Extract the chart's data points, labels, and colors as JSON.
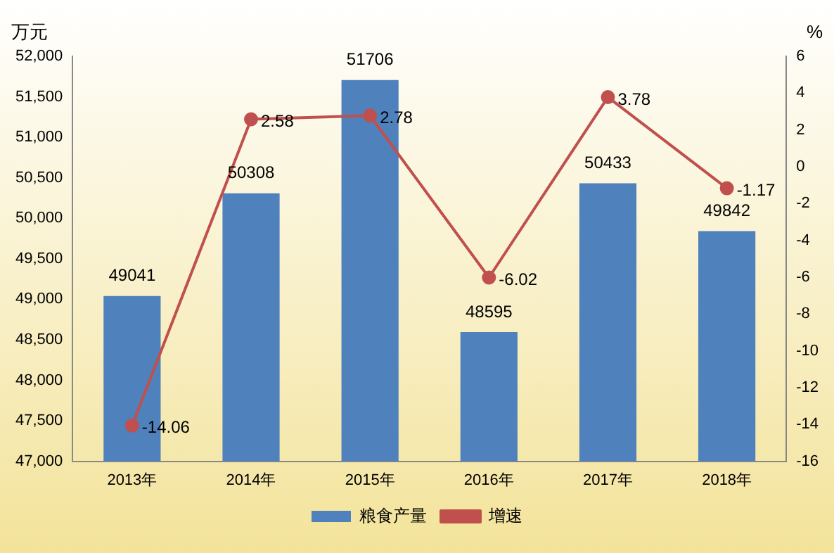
{
  "chart_data": {
    "type": "bar",
    "ylabel": "万元",
    "y2label": "%",
    "categories": [
      "2013年",
      "2014年",
      "2015年",
      "2016年",
      "2017年",
      "2018年"
    ],
    "series": [
      {
        "name": "粮食产量",
        "color": "#4f81bd",
        "values": [
          49041,
          50308,
          51706,
          48595,
          50433,
          49842
        ]
      },
      {
        "name": "增速",
        "type": "line",
        "axis": "y2",
        "color": "#c0504d",
        "values": [
          -14.06,
          2.58,
          2.78,
          -6.02,
          3.78,
          -1.17
        ]
      }
    ],
    "ylim": [
      47000,
      52000
    ],
    "yticks": [
      {
        "value": 47000,
        "label": "47,000"
      },
      {
        "value": 47500,
        "label": "47,500"
      },
      {
        "value": 48000,
        "label": "48,000"
      },
      {
        "value": 48500,
        "label": "48,500"
      },
      {
        "value": 49000,
        "label": "49,000"
      },
      {
        "value": 49500,
        "label": "49,500"
      },
      {
        "value": 50000,
        "label": "50,000"
      },
      {
        "value": 50500,
        "label": "50,500"
      },
      {
        "value": 51000,
        "label": "51,000"
      },
      {
        "value": 51500,
        "label": "51,500"
      },
      {
        "value": 52000,
        "label": "52,000"
      }
    ],
    "y2lim": [
      -16,
      6
    ],
    "y2ticks": [
      -16,
      -14,
      -12,
      -10,
      -8,
      -6,
      -4,
      -2,
      0,
      2,
      4,
      6
    ],
    "marker": "circle",
    "data_labels": true,
    "legend": "bottom"
  }
}
